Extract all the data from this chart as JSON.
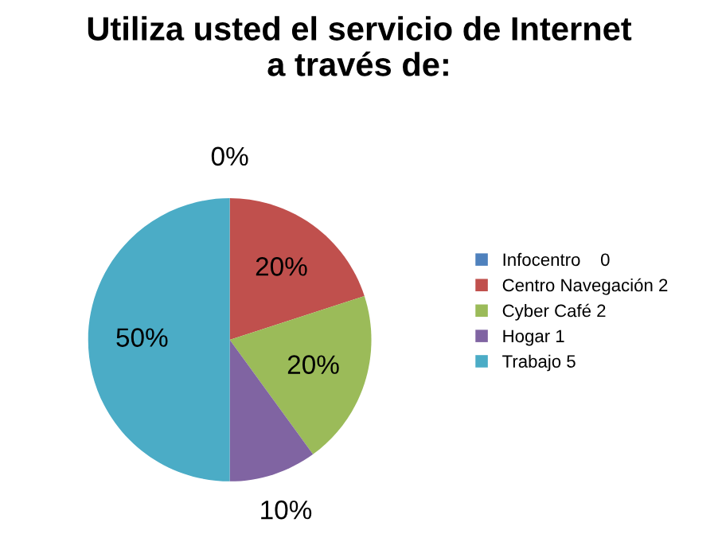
{
  "chart_data": {
    "type": "pie",
    "title": "Utiliza usted el servicio de Internet\na través de:",
    "categories": [
      "Infocentro    0",
      "Centro Navegación 2",
      "Cyber Café 2",
      "Hogar 1",
      "Trabajo 5"
    ],
    "values": [
      0,
      20,
      20,
      10,
      50
    ],
    "colors": [
      "#4f81bd",
      "#c0504d",
      "#9bbb59",
      "#8064a2",
      "#4bacc6"
    ],
    "value_labels": [
      "0%",
      "20%",
      "20%",
      "10%",
      "50%"
    ],
    "legend": "right"
  }
}
